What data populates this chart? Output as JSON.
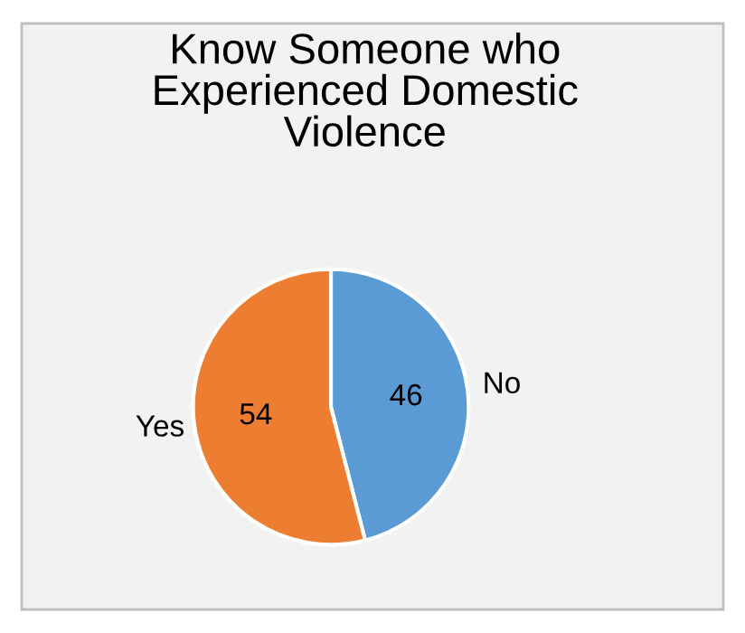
{
  "chart_data": {
    "type": "pie",
    "title": "Know Someone who\nExperienced Domestic\nViolence",
    "categories": [
      "No",
      "Yes"
    ],
    "values": [
      46,
      54
    ],
    "colors": [
      "#5b9bd5",
      "#ed7d31"
    ],
    "data_labels": true
  }
}
